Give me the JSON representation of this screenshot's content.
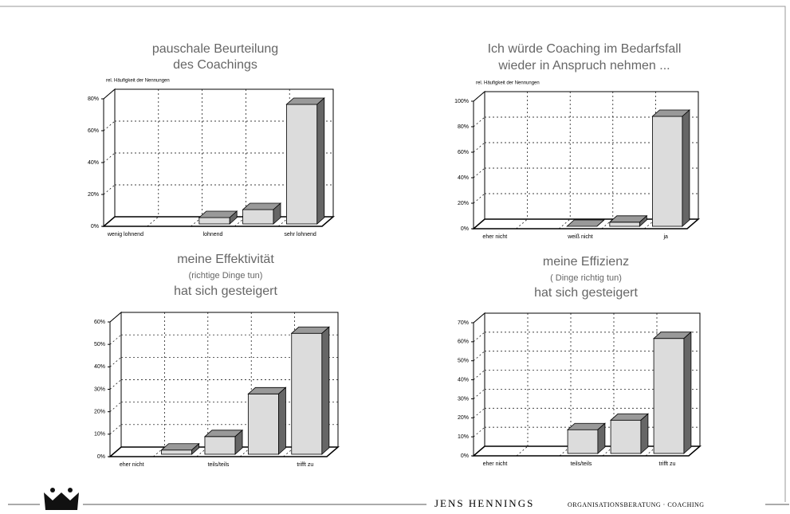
{
  "chart_data": [
    {
      "type": "bar",
      "title": [
        "pauschale Beurteilung",
        "des Coachings"
      ],
      "ylabel": "rel. Häufigkeit der Nennungen",
      "categories": [
        "wenig lohnend",
        null,
        "lohnend",
        null,
        "sehr lohnend"
      ],
      "values": [
        0,
        0,
        7,
        12,
        78
      ],
      "color": "#dcdcdc",
      "ylim": [
        0,
        80
      ],
      "yticks": [
        {
          "value": 0,
          "label": "0%"
        },
        {
          "value": 20,
          "label": "20%"
        },
        {
          "value": 40,
          "label": "40%"
        },
        {
          "value": 60,
          "label": "60%"
        },
        {
          "value": 80,
          "label": "80%"
        }
      ],
      "grid": true
    },
    {
      "type": "bar",
      "title": [
        "Ich würde Coaching im Bedarfsfall",
        "wieder in Anspruch nehmen ..."
      ],
      "ylabel": "rel. Häufigkeit der Nennungen",
      "categories": [
        "eher nicht",
        null,
        "weiß nicht",
        null,
        "ja"
      ],
      "values": [
        0,
        0,
        1,
        7,
        90
      ],
      "color": "#dcdcdc",
      "ylim": [
        0,
        100
      ],
      "yticks": [
        {
          "value": 0,
          "label": "0%"
        },
        {
          "value": 20,
          "label": "20%"
        },
        {
          "value": 40,
          "label": "40%"
        },
        {
          "value": 60,
          "label": "60%"
        },
        {
          "value": 80,
          "label": "80%"
        },
        {
          "value": 100,
          "label": "100%"
        }
      ],
      "grid": true
    },
    {
      "type": "bar",
      "title": [
        "meine Effektivität",
        "(richtige Dinge tun)",
        "hat sich gesteigert"
      ],
      "categories": [
        "eher nicht",
        null,
        "teils/teils",
        null,
        "trifft zu"
      ],
      "values": [
        0,
        4,
        10,
        29,
        56
      ],
      "color": "#dcdcdc",
      "ylim": [
        0,
        60
      ],
      "yticks": [
        {
          "value": 0,
          "label": "0%"
        },
        {
          "value": 10,
          "label": "10%"
        },
        {
          "value": 20,
          "label": "20%"
        },
        {
          "value": 30,
          "label": "30%"
        },
        {
          "value": 40,
          "label": "40%"
        },
        {
          "value": 50,
          "label": "50%"
        },
        {
          "value": 60,
          "label": "60%"
        }
      ],
      "grid": true
    },
    {
      "type": "bar",
      "title": [
        "meine Effizienz",
        "( Dinge richtig tun)",
        "hat sich gesteigert"
      ],
      "categories": [
        "eher nicht",
        null,
        "teils/teils",
        null,
        "trifft zu"
      ],
      "values": [
        0,
        0,
        15,
        20,
        63
      ],
      "color": "#dcdcdc",
      "ylim": [
        0,
        70
      ],
      "yticks": [
        {
          "value": 0,
          "label": "0%"
        },
        {
          "value": 10,
          "label": "10%"
        },
        {
          "value": 20,
          "label": "20%"
        },
        {
          "value": 30,
          "label": "30%"
        },
        {
          "value": 40,
          "label": "40%"
        },
        {
          "value": 50,
          "label": "50%"
        },
        {
          "value": 60,
          "label": "60%"
        },
        {
          "value": 70,
          "label": "70%"
        }
      ],
      "grid": true
    }
  ],
  "footer": {
    "name": "JENS HENNINGS",
    "tagline": "ORGANISATIONSBERATUNG · COACHING"
  }
}
